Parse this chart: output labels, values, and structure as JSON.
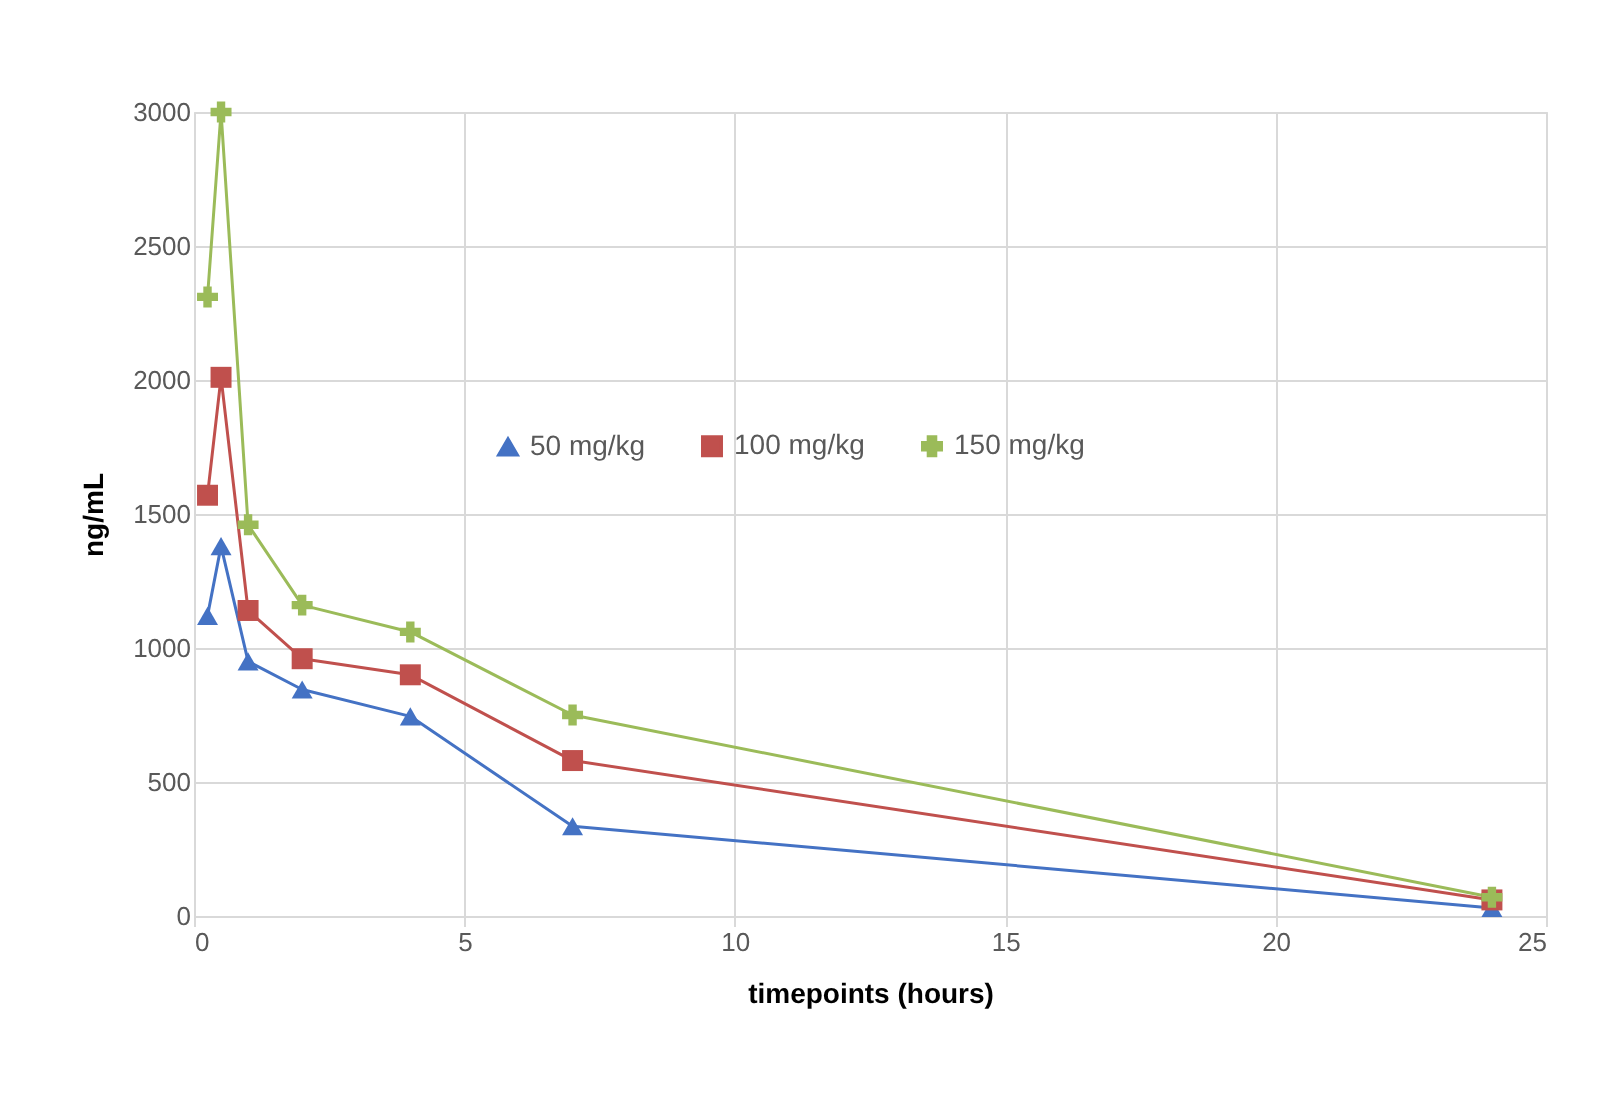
{
  "chart_data": {
    "type": "line",
    "xlabel": "timepoints (hours)",
    "ylabel": "ng/mL",
    "xlim": [
      0,
      25
    ],
    "xticks": [
      0,
      5,
      10,
      15,
      20,
      25
    ],
    "ylim": [
      0,
      3000
    ],
    "yticks": [
      0,
      500,
      1000,
      1500,
      2000,
      2500,
      3000
    ],
    "grid": true,
    "legend": "top left",
    "line_style": "solid",
    "x": [
      0.25,
      0.5,
      1,
      2,
      4,
      7,
      24
    ],
    "series": [
      {
        "name": "50 mg/kg",
        "color": "#4472c4",
        "marker": "triangle",
        "values": [
          1120,
          1380,
          950,
          845,
          745,
          335,
          30
        ]
      },
      {
        "name": "100 mg/kg",
        "color": "#c0504d",
        "marker": "square",
        "values": [
          1570,
          2010,
          1140,
          960,
          900,
          580,
          60
        ]
      },
      {
        "name": "150 mg/kg",
        "color": "#9bbb59",
        "marker": "cross",
        "values": [
          2310,
          3000,
          1460,
          1160,
          1060,
          750,
          70
        ]
      }
    ]
  }
}
